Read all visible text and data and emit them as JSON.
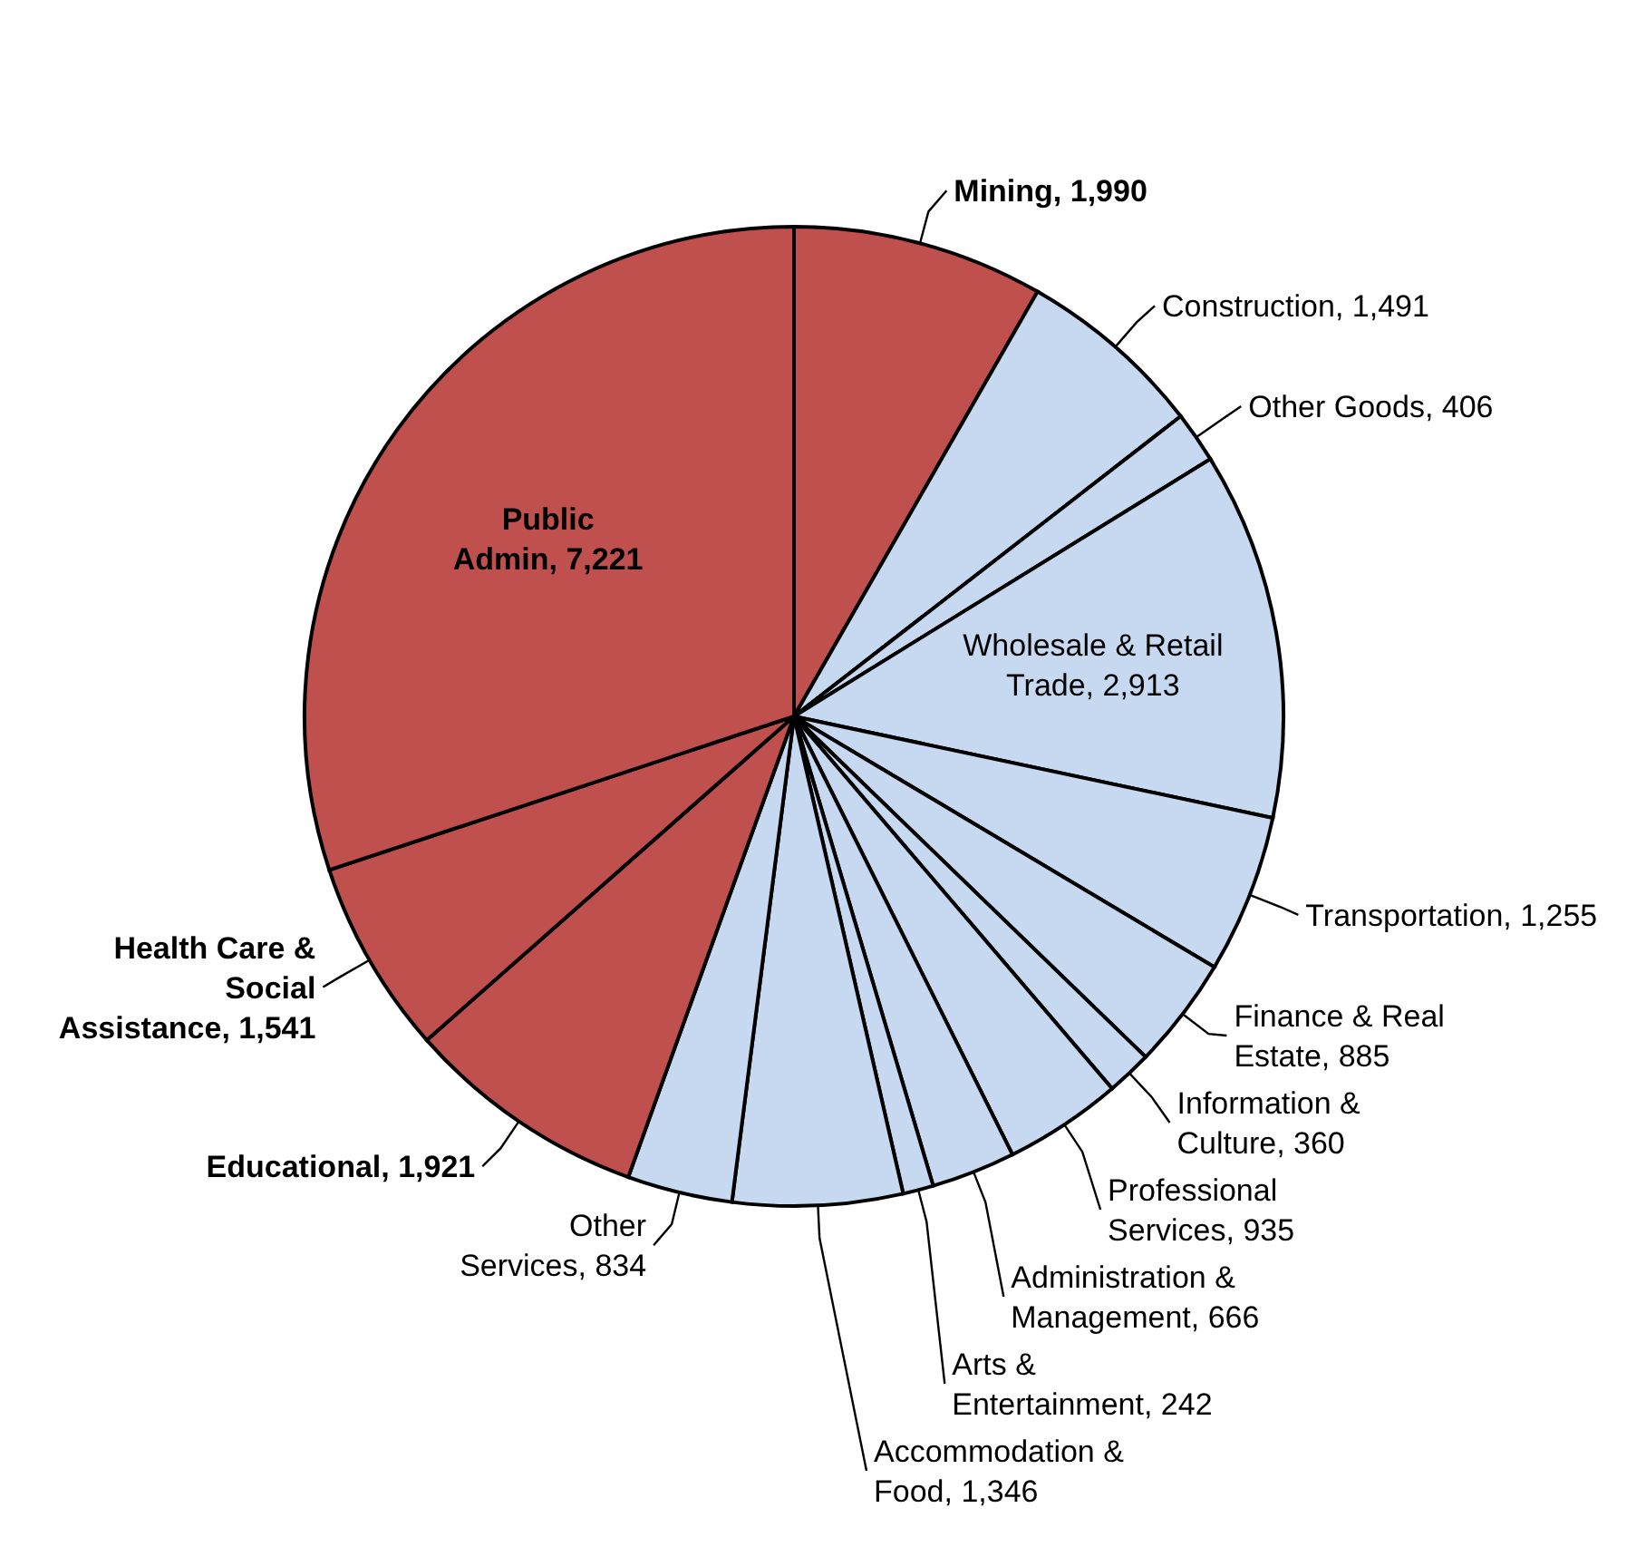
{
  "chart_data": {
    "type": "pie",
    "categories": [
      "Mining",
      "Construction",
      "Other Goods",
      "Wholesale & Retail Trade",
      "Transportation",
      "Finance & Real Estate",
      "Information & Culture",
      "Professional Services",
      "Administration & Management",
      "Arts & Entertainment",
      "Accommodation & Food",
      "Other Services",
      "Educational",
      "Health Care & Social Assistance",
      "Public Admin"
    ],
    "value_labels": [
      "1,990",
      "1,491",
      "406",
      "2,913",
      "1,255",
      "885",
      "360",
      "935",
      "666",
      "242",
      "1,346",
      "834",
      "1,921",
      "1,541",
      "7,221"
    ],
    "values": [
      1990,
      1491,
      406,
      2913,
      1255,
      885,
      360,
      935,
      666,
      242,
      1346,
      834,
      1921,
      1541,
      7221
    ],
    "colors": [
      "#c0504d",
      "#c6d9f1",
      "#c6d9f1",
      "#c6d9f1",
      "#c6d9f1",
      "#c6d9f1",
      "#c6d9f1",
      "#c6d9f1",
      "#c6d9f1",
      "#c6d9f1",
      "#c6d9f1",
      "#c6d9f1",
      "#c0504d",
      "#c0504d",
      "#c0504d"
    ]
  }
}
